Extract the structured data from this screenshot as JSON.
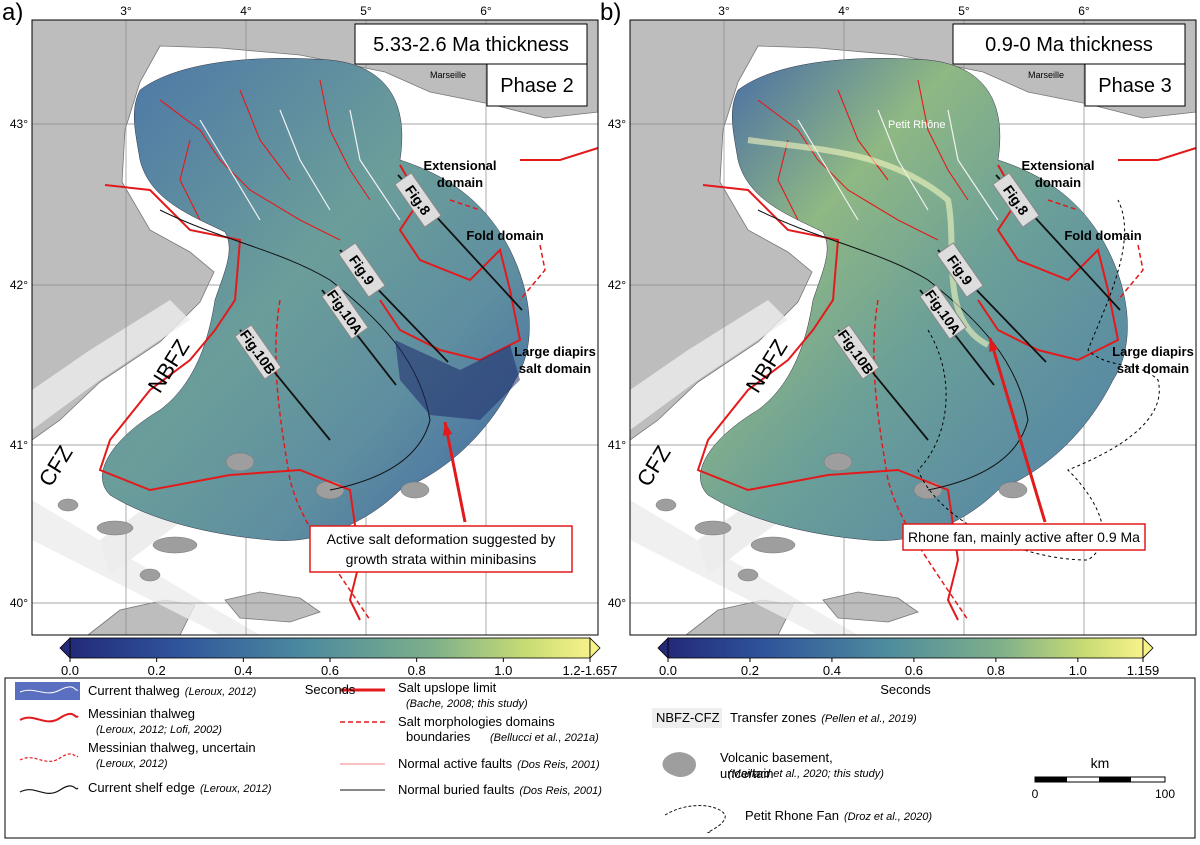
{
  "panels": [
    {
      "label": "a)",
      "title": "5.33-2.6 Ma thickness",
      "phase": "Phase 2",
      "lon_labels": [
        "3°",
        "4°",
        "5°",
        "6°"
      ],
      "lat_labels": [
        "43°",
        "42°",
        "41°",
        "40°"
      ],
      "places": [
        "Marseille"
      ],
      "zones": [
        "NBFZ",
        "CFZ"
      ],
      "domains": [
        [
          "Extensional",
          "domain"
        ],
        [
          "Fold domain"
        ],
        [
          "Large diapirs",
          "salt domain"
        ]
      ],
      "profiles": [
        "Fig.8",
        "Fig.9",
        "Fig.10A",
        "Fig.10B"
      ],
      "callout": [
        "Active salt deformation suggested by",
        "growth strata within minibasins"
      ],
      "colorbar": {
        "range": [
          0,
          1.2
        ],
        "label": "Seconds",
        "ticks": [
          {
            "value": 0,
            "label": "0.0"
          },
          {
            "value": 0.2,
            "label": "0.2"
          },
          {
            "value": 0.4,
            "label": "0.4"
          },
          {
            "value": 0.6,
            "label": "0.6"
          },
          {
            "value": 0.8,
            "label": "0.8"
          },
          {
            "value": 1,
            "label": "1.0"
          },
          {
            "value": 1.2,
            "label": "1.2-1.657"
          }
        ]
      }
    },
    {
      "label": "b)",
      "title": "0.9-0 Ma thickness",
      "phase": "Phase 3",
      "lon_labels": [
        "3°",
        "4°",
        "5°",
        "6°"
      ],
      "lat_labels": [
        "43°",
        "42°",
        "41°",
        "40°"
      ],
      "places": [
        "Marseille",
        "Petit Rhône"
      ],
      "zones": [
        "NBFZ",
        "CFZ"
      ],
      "domains": [
        [
          "Extensional",
          "domain"
        ],
        [
          "Fold domain"
        ],
        [
          "Large diapirs",
          "salt domain"
        ]
      ],
      "profiles": [
        "Fig.8",
        "Fig.9",
        "Fig.10A",
        "Fig.10B"
      ],
      "callout": [
        "Rhone fan, mainly active after 0.9 Ma"
      ],
      "colorbar": {
        "range": [
          0,
          1.159
        ],
        "label": "Seconds",
        "ticks": [
          {
            "value": 0,
            "label": "0.0"
          },
          {
            "value": 0.2,
            "label": "0.2"
          },
          {
            "value": 0.4,
            "label": "0.4"
          },
          {
            "value": 0.6,
            "label": "0.6"
          },
          {
            "value": 0.8,
            "label": "0.8"
          },
          {
            "value": 1,
            "label": "1.0"
          },
          1.159
        ]
      }
    }
  ],
  "legend": {
    "items": [
      {
        "label": "Current thalweg",
        "source": "(Leroux, 2012)"
      },
      {
        "label": "Messinian thalweg",
        "source": "(Leroux, 2012; Lofi, 2002)"
      },
      {
        "label": "Messinian thalweg, uncertain",
        "source": "(Leroux, 2012)"
      },
      {
        "label": "Current shelf edge",
        "source": "(Leroux, 2012)"
      },
      {
        "label": "Salt upslope limit",
        "source": "(Bache, 2008; this study)"
      },
      {
        "label": "Salt morphologies domains",
        "source": "boundaries"
      },
      {
        "label": "Normal active faults",
        "source": "(Dos Reis, 2001)"
      },
      {
        "label": "Normal buried faults",
        "source": "(Dos Reis, 2001)"
      },
      {
        "label": "Transfer zones",
        "source": "(Pellen et al., 2019)"
      },
      {
        "label": "Volcanic basement,",
        "source": "(Maillard et al., 2020; this study)"
      },
      {
        "label": "Petit Rhone Fan",
        "source": "(Droz et al., 2020)"
      }
    ],
    "extra": {
      "domains_source": "(Bellucci et al., 2021a)",
      "zone_code": "NBFZ-CFZ",
      "volcanic_second": "uncertain"
    },
    "scale": {
      "unit": "km",
      "start": "0",
      "end": "100"
    }
  }
}
